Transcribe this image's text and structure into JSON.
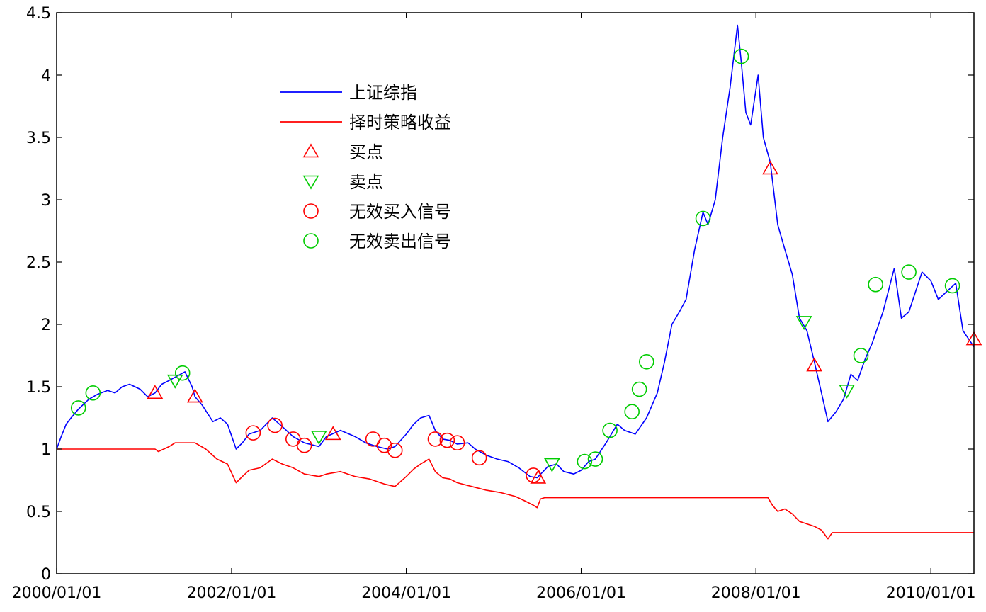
{
  "chart_data": {
    "type": "line",
    "title": "",
    "xlabel": "",
    "ylabel": "",
    "xlim": [
      "2000/01/01",
      "2010/06/30"
    ],
    "ylim": [
      0,
      4.5
    ],
    "x_ticks": [
      "2000/01/01",
      "2002/01/01",
      "2004/01/01",
      "2006/01/01",
      "2008/01/01",
      "2010/01/01"
    ],
    "y_ticks": [
      0,
      0.5,
      1,
      1.5,
      2,
      2.5,
      3,
      3.5,
      4,
      4.5
    ],
    "y_tick_labels": [
      "0",
      "0.5",
      "1",
      "1.5",
      "2",
      "2.5",
      "3",
      "3.5",
      "4",
      "4.5"
    ],
    "grid": false,
    "legend_position": "upper-left-inside",
    "series": [
      {
        "name": "上证综指",
        "color": "#0000ff",
        "style": "line",
        "points": [
          [
            "2000/01/01",
            1.0
          ],
          [
            "2000/01/20",
            1.1
          ],
          [
            "2000/02/10",
            1.2
          ],
          [
            "2000/03/01",
            1.25
          ],
          [
            "2000/04/01",
            1.32
          ],
          [
            "2000/05/15",
            1.4
          ],
          [
            "2000/06/20",
            1.44
          ],
          [
            "2000/08/01",
            1.47
          ],
          [
            "2000/09/01",
            1.45
          ],
          [
            "2000/10/01",
            1.5
          ],
          [
            "2000/11/01",
            1.52
          ],
          [
            "2000/12/15",
            1.48
          ],
          [
            "2001/01/15",
            1.42
          ],
          [
            "2001/02/15",
            1.45
          ],
          [
            "2001/03/15",
            1.52
          ],
          [
            "2001/04/15",
            1.55
          ],
          [
            "2001/06/01",
            1.6
          ],
          [
            "2001/06/20",
            1.62
          ],
          [
            "2001/07/20",
            1.5
          ],
          [
            "2001/08/01",
            1.42
          ],
          [
            "2001/09/01",
            1.35
          ],
          [
            "2001/10/15",
            1.22
          ],
          [
            "2001/11/15",
            1.25
          ],
          [
            "2001/12/15",
            1.2
          ],
          [
            "2002/01/20",
            1.0
          ],
          [
            "2002/02/15",
            1.05
          ],
          [
            "2002/03/15",
            1.12
          ],
          [
            "2002/05/01",
            1.15
          ],
          [
            "2002/06/20",
            1.25
          ],
          [
            "2002/08/01",
            1.18
          ],
          [
            "2002/09/15",
            1.1
          ],
          [
            "2002/11/01",
            1.05
          ],
          [
            "2003/01/01",
            1.02
          ],
          [
            "2003/02/01",
            1.1
          ],
          [
            "2003/04/01",
            1.15
          ],
          [
            "2003/06/01",
            1.1
          ],
          [
            "2003/07/15",
            1.05
          ],
          [
            "2003/09/01",
            1.02
          ],
          [
            "2003/10/15",
            1.0
          ],
          [
            "2003/11/15",
            1.02
          ],
          [
            "2004/01/01",
            1.12
          ],
          [
            "2004/02/01",
            1.2
          ],
          [
            "2004/03/01",
            1.25
          ],
          [
            "2004/04/05",
            1.27
          ],
          [
            "2004/05/01",
            1.15
          ],
          [
            "2004/06/01",
            1.08
          ],
          [
            "2004/07/01",
            1.07
          ],
          [
            "2004/08/01",
            1.04
          ],
          [
            "2004/09/15",
            1.05
          ],
          [
            "2004/10/15",
            1.0
          ],
          [
            "2004/12/01",
            0.95
          ],
          [
            "2005/01/15",
            0.92
          ],
          [
            "2005/03/01",
            0.9
          ],
          [
            "2005/04/15",
            0.85
          ],
          [
            "2005/06/01",
            0.78
          ],
          [
            "2005/07/01",
            0.77
          ],
          [
            "2005/08/15",
            0.86
          ],
          [
            "2005/09/20",
            0.88
          ],
          [
            "2005/10/20",
            0.82
          ],
          [
            "2005/12/01",
            0.8
          ],
          [
            "2006/01/01",
            0.83
          ],
          [
            "2006/02/01",
            0.9
          ],
          [
            "2006/03/01",
            0.92
          ],
          [
            "2006/04/15",
            1.05
          ],
          [
            "2006/06/01",
            1.2
          ],
          [
            "2006/07/01",
            1.15
          ],
          [
            "2006/08/15",
            1.12
          ],
          [
            "2006/10/01",
            1.25
          ],
          [
            "2006/11/15",
            1.45
          ],
          [
            "2006/12/15",
            1.7
          ],
          [
            "2007/01/15",
            2.0
          ],
          [
            "2007/02/15",
            2.1
          ],
          [
            "2007/03/15",
            2.2
          ],
          [
            "2007/04/20",
            2.6
          ],
          [
            "2007/05/25",
            2.9
          ],
          [
            "2007/06/15",
            2.8
          ],
          [
            "2007/07/15",
            3.0
          ],
          [
            "2007/08/15",
            3.5
          ],
          [
            "2007/09/15",
            3.9
          ],
          [
            "2007/10/16",
            4.4
          ],
          [
            "2007/11/01",
            4.1
          ],
          [
            "2007/11/20",
            3.7
          ],
          [
            "2007/12/10",
            3.6
          ],
          [
            "2008/01/10",
            4.0
          ],
          [
            "2008/02/01",
            3.5
          ],
          [
            "2008/03/01",
            3.3
          ],
          [
            "2008/04/01",
            2.8
          ],
          [
            "2008/05/01",
            2.6
          ],
          [
            "2008/06/01",
            2.4
          ],
          [
            "2008/07/01",
            2.05
          ],
          [
            "2008/08/01",
            1.95
          ],
          [
            "2008/09/01",
            1.7
          ],
          [
            "2008/10/01",
            1.45
          ],
          [
            "2008/10/28",
            1.22
          ],
          [
            "2008/12/01",
            1.3
          ],
          [
            "2009/01/01",
            1.4
          ],
          [
            "2009/02/01",
            1.6
          ],
          [
            "2009/03/01",
            1.55
          ],
          [
            "2009/04/01",
            1.72
          ],
          [
            "2009/05/01",
            1.85
          ],
          [
            "2009/06/15",
            2.1
          ],
          [
            "2009/08/01",
            2.45
          ],
          [
            "2009/08/31",
            2.05
          ],
          [
            "2009/10/01",
            2.1
          ],
          [
            "2009/11/25",
            2.42
          ],
          [
            "2010/01/01",
            2.35
          ],
          [
            "2010/02/01",
            2.2
          ],
          [
            "2010/03/01",
            2.25
          ],
          [
            "2010/04/15",
            2.33
          ],
          [
            "2010/05/15",
            1.95
          ],
          [
            "2010/06/30",
            1.82
          ]
        ]
      },
      {
        "name": "择时策略收益",
        "color": "#ff0000",
        "style": "line",
        "points": [
          [
            "2000/01/01",
            1.0
          ],
          [
            "2001/02/15",
            1.0
          ],
          [
            "2001/03/01",
            0.98
          ],
          [
            "2001/04/15",
            1.02
          ],
          [
            "2001/05/10",
            1.05
          ],
          [
            "2001/08/01",
            1.05
          ],
          [
            "2001/09/15",
            1.0
          ],
          [
            "2001/11/01",
            0.92
          ],
          [
            "2001/12/15",
            0.88
          ],
          [
            "2002/01/20",
            0.73
          ],
          [
            "2002/02/15",
            0.78
          ],
          [
            "2002/03/15",
            0.83
          ],
          [
            "2002/05/01",
            0.85
          ],
          [
            "2002/06/20",
            0.92
          ],
          [
            "2002/08/01",
            0.88
          ],
          [
            "2002/09/15",
            0.85
          ],
          [
            "2002/11/01",
            0.8
          ],
          [
            "2003/01/01",
            0.78
          ],
          [
            "2003/02/01",
            0.8
          ],
          [
            "2003/04/01",
            0.82
          ],
          [
            "2003/06/01",
            0.78
          ],
          [
            "2003/08/01",
            0.76
          ],
          [
            "2003/10/01",
            0.72
          ],
          [
            "2003/11/15",
            0.7
          ],
          [
            "2004/01/01",
            0.78
          ],
          [
            "2004/02/01",
            0.84
          ],
          [
            "2004/03/01",
            0.88
          ],
          [
            "2004/04/05",
            0.92
          ],
          [
            "2004/05/01",
            0.82
          ],
          [
            "2004/06/01",
            0.77
          ],
          [
            "2004/07/01",
            0.76
          ],
          [
            "2004/08/01",
            0.73
          ],
          [
            "2004/10/01",
            0.7
          ],
          [
            "2004/12/01",
            0.67
          ],
          [
            "2005/02/01",
            0.65
          ],
          [
            "2005/04/01",
            0.62
          ],
          [
            "2005/05/15",
            0.58
          ],
          [
            "2005/06/15",
            0.55
          ],
          [
            "2005/07/01",
            0.53
          ],
          [
            "2005/07/15",
            0.6
          ],
          [
            "2005/08/01",
            0.61
          ],
          [
            "2008/02/20",
            0.61
          ],
          [
            "2008/03/10",
            0.55
          ],
          [
            "2008/04/01",
            0.5
          ],
          [
            "2008/05/01",
            0.52
          ],
          [
            "2008/06/01",
            0.48
          ],
          [
            "2008/07/01",
            0.42
          ],
          [
            "2008/08/01",
            0.4
          ],
          [
            "2008/09/01",
            0.38
          ],
          [
            "2008/10/01",
            0.35
          ],
          [
            "2008/10/28",
            0.28
          ],
          [
            "2008/11/15",
            0.33
          ],
          [
            "2010/06/30",
            0.33
          ]
        ]
      }
    ],
    "markers": [
      {
        "name": "买点",
        "symbol": "triangle-up",
        "color": "#ff0000",
        "points": [
          [
            "2001/02/15",
            1.45
          ],
          [
            "2001/08/01",
            1.42
          ],
          [
            "2003/03/01",
            1.12
          ],
          [
            "2005/07/05",
            0.77
          ],
          [
            "2008/03/01",
            3.25
          ],
          [
            "2008/09/01",
            1.67
          ],
          [
            "2010/06/30",
            1.88
          ]
        ]
      },
      {
        "name": "卖点",
        "symbol": "triangle-down",
        "color": "#00cc00",
        "points": [
          [
            "2001/05/10",
            1.55
          ],
          [
            "2003/01/01",
            1.1
          ],
          [
            "2005/09/01",
            0.88
          ],
          [
            "2008/07/20",
            2.02
          ],
          [
            "2009/01/15",
            1.47
          ]
        ]
      },
      {
        "name": "无效买入信号",
        "symbol": "circle",
        "color": "#ff0000",
        "points": [
          [
            "2002/04/01",
            1.13
          ],
          [
            "2002/07/01",
            1.19
          ],
          [
            "2002/09/15",
            1.08
          ],
          [
            "2002/11/01",
            1.03
          ],
          [
            "2003/08/15",
            1.08
          ],
          [
            "2003/10/01",
            1.03
          ],
          [
            "2003/11/15",
            0.99
          ],
          [
            "2004/05/01",
            1.08
          ],
          [
            "2004/06/20",
            1.07
          ],
          [
            "2004/08/01",
            1.05
          ],
          [
            "2004/11/01",
            0.93
          ],
          [
            "2005/06/15",
            0.79
          ]
        ]
      },
      {
        "name": "无效卖出信号",
        "symbol": "circle",
        "color": "#00cc00",
        "points": [
          [
            "2000/04/01",
            1.33
          ],
          [
            "2000/06/01",
            1.45
          ],
          [
            "2001/06/10",
            1.61
          ],
          [
            "2006/01/15",
            0.9
          ],
          [
            "2006/03/01",
            0.92
          ],
          [
            "2006/05/01",
            1.15
          ],
          [
            "2006/08/01",
            1.3
          ],
          [
            "2006/09/01",
            1.48
          ],
          [
            "2006/10/01",
            1.7
          ],
          [
            "2007/05/25",
            2.85
          ],
          [
            "2007/11/01",
            4.15
          ],
          [
            "2009/03/15",
            1.75
          ],
          [
            "2009/05/15",
            2.32
          ],
          [
            "2009/10/01",
            2.42
          ],
          [
            "2010/04/01",
            2.31
          ]
        ]
      }
    ],
    "legend": [
      {
        "label": "上证综指",
        "kind": "line",
        "color": "#0000ff"
      },
      {
        "label": "择时策略收益",
        "kind": "line",
        "color": "#ff0000"
      },
      {
        "label": "买点",
        "kind": "triangle-up",
        "color": "#ff0000"
      },
      {
        "label": "卖点",
        "kind": "triangle-down",
        "color": "#00cc00"
      },
      {
        "label": "无效买入信号",
        "kind": "circle",
        "color": "#ff0000"
      },
      {
        "label": "无效卖出信号",
        "kind": "circle",
        "color": "#00cc00"
      }
    ]
  }
}
